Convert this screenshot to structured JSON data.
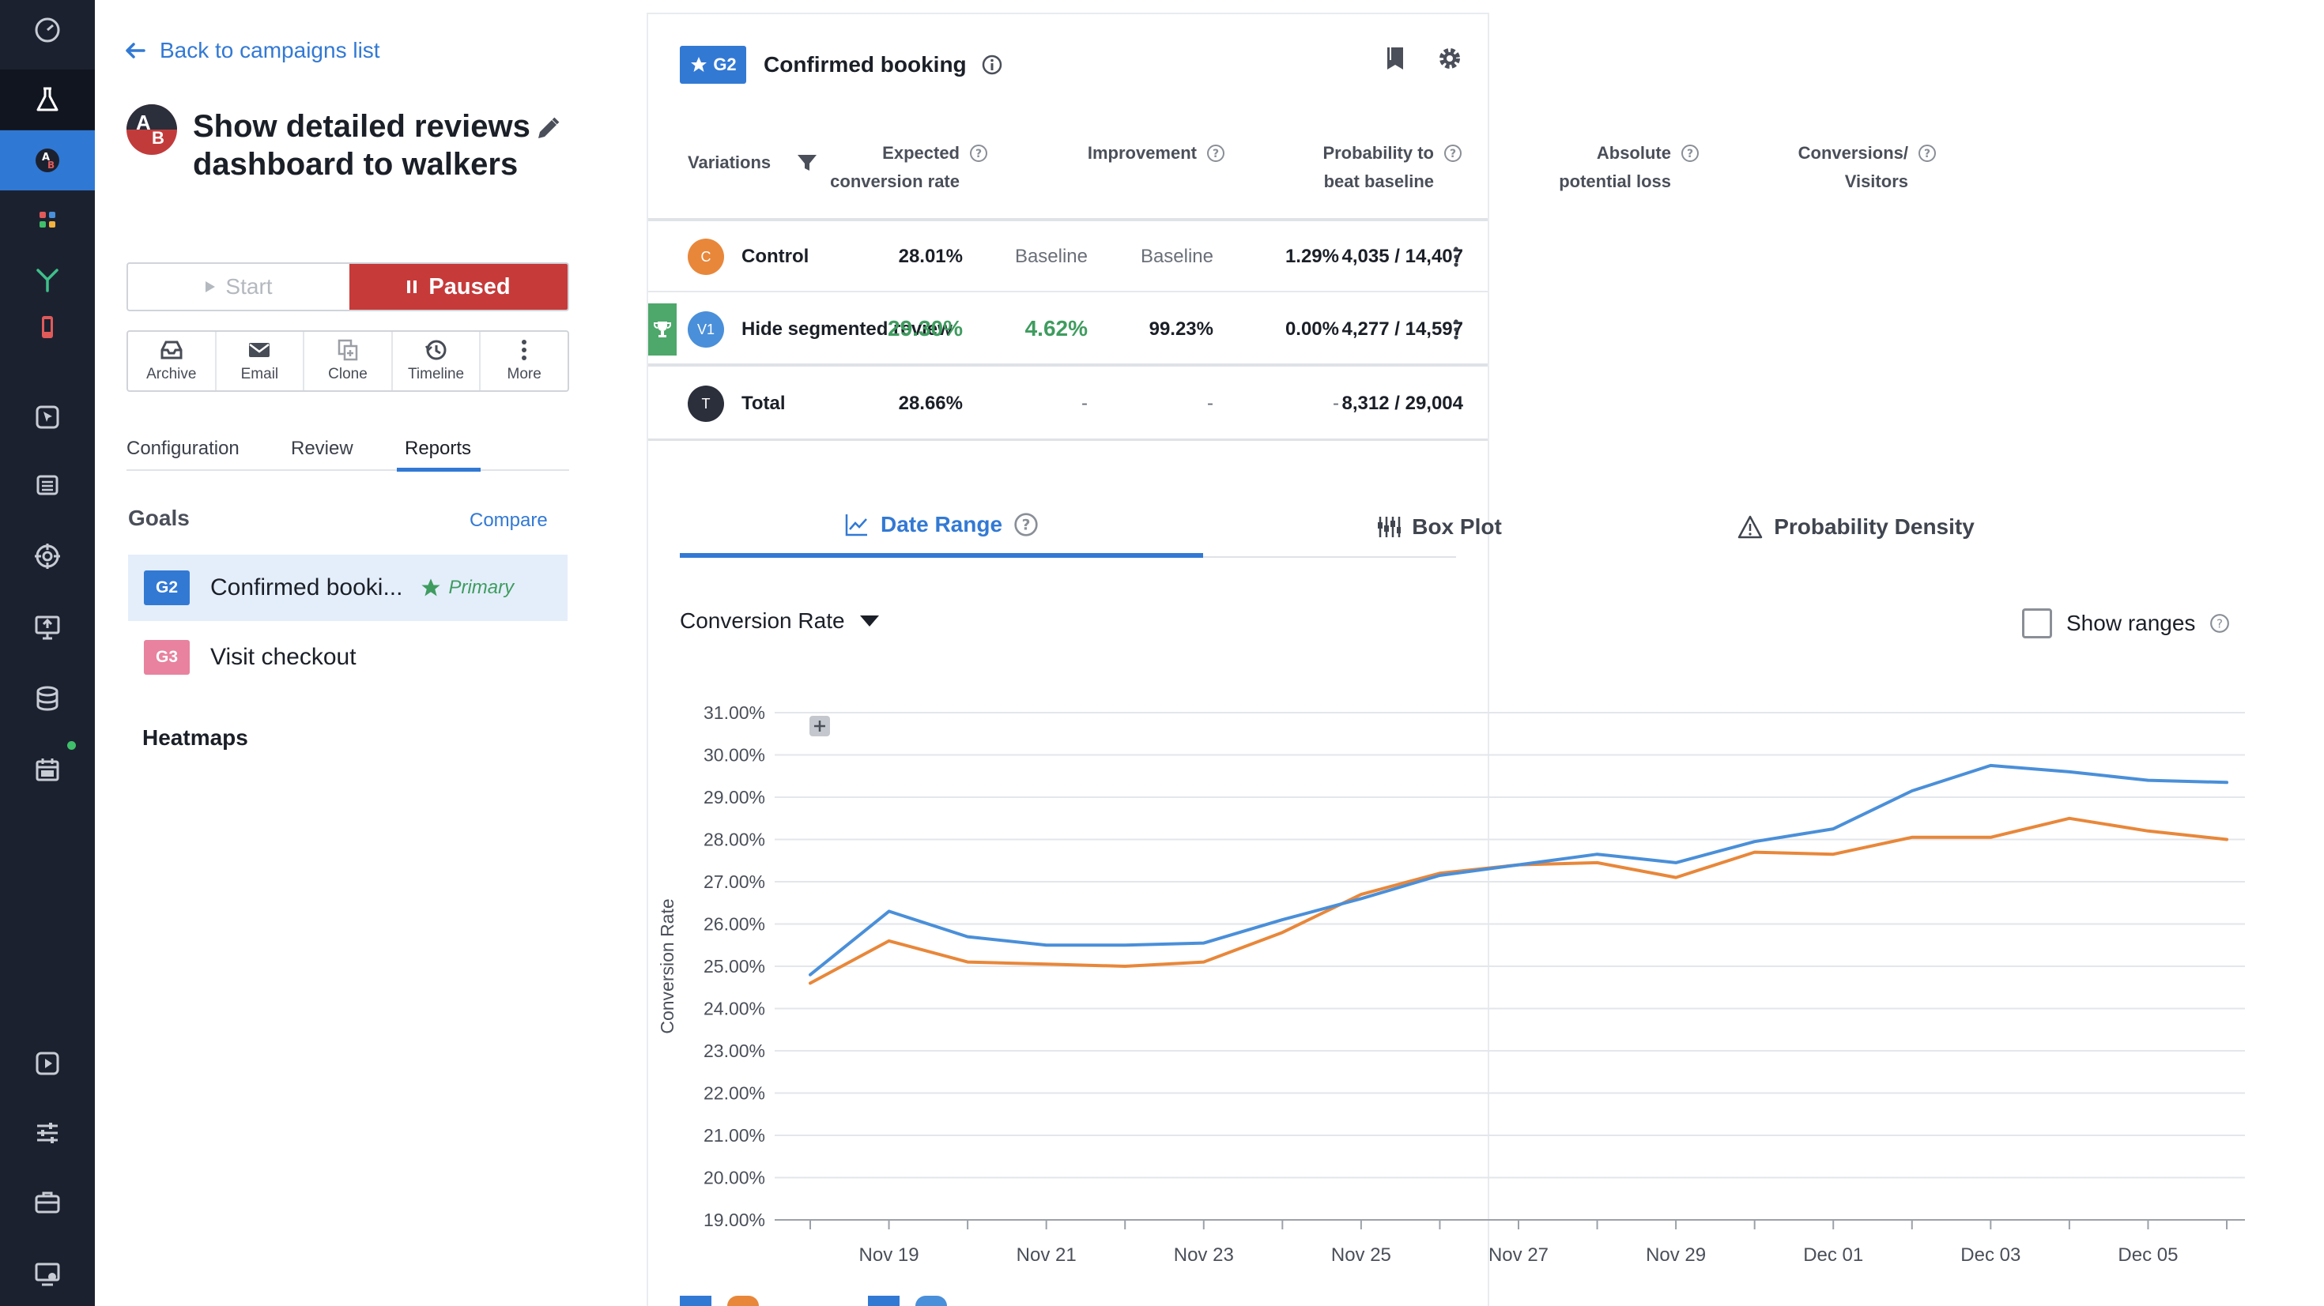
{
  "rail": {
    "items": [
      {
        "name": "dashboard-icon",
        "state": ""
      },
      {
        "name": "flask-icon",
        "state": "dark"
      },
      {
        "name": "ab-test-icon",
        "state": "active"
      },
      {
        "name": "apps-grid-icon",
        "state": ""
      },
      {
        "name": "funnel-split-icon",
        "state": ""
      },
      {
        "name": "mobile-icon",
        "state": ""
      },
      {
        "name": "cursor-icon",
        "state": ""
      },
      {
        "name": "list-icon",
        "state": ""
      },
      {
        "name": "target-icon",
        "state": ""
      },
      {
        "name": "monitor-icon",
        "state": ""
      },
      {
        "name": "database-icon",
        "state": ""
      },
      {
        "name": "calendar-icon",
        "state": ""
      },
      {
        "name": "play-screen-icon",
        "state": ""
      },
      {
        "name": "sliders-icon",
        "state": ""
      },
      {
        "name": "briefcase-icon",
        "state": ""
      },
      {
        "name": "screen-settings-icon",
        "state": ""
      }
    ]
  },
  "campaign": {
    "back_label": "Back to campaigns list",
    "avatar_a": "A",
    "avatar_b": "B",
    "title": "Show detailed reviews dashboard to walkers",
    "start_label": "Start",
    "paused_label": "Paused",
    "actions": [
      {
        "label": "Archive",
        "icon": "archive-icon"
      },
      {
        "label": "Email",
        "icon": "email-icon"
      },
      {
        "label": "Clone",
        "icon": "clone-icon"
      },
      {
        "label": "Timeline",
        "icon": "timeline-icon"
      },
      {
        "label": "More",
        "icon": "more-vertical-icon"
      }
    ],
    "tabs": [
      "Configuration",
      "Review",
      "Reports"
    ],
    "active_tab": "Reports",
    "goals_heading": "Goals",
    "compare_label": "Compare",
    "goals": [
      {
        "badge": "G2",
        "name": "Confirmed booki...",
        "primary": "Primary",
        "color": "#3279d4"
      },
      {
        "badge": "G3",
        "name": "Visit checkout",
        "primary": "",
        "color": "#e8829e"
      }
    ],
    "heatmaps_label": "Heatmaps"
  },
  "report": {
    "goal_badge": "G2",
    "goal_title": "Confirmed booking",
    "columns": {
      "variations": "Variations",
      "expected_1": "Expected",
      "expected_2": "conversion rate",
      "improvement": "Improvement",
      "probability_1": "Probability to",
      "probability_2": "beat baseline",
      "loss_1": "Absolute",
      "loss_2": "potential loss",
      "conv_1": "Conversions/",
      "conv_2": "Visitors"
    },
    "rows": [
      {
        "badge": "C",
        "name": "Control",
        "expected": "28.01%",
        "improvement": "Baseline",
        "probability": "Baseline",
        "loss": "1.29%",
        "conversions": "4,035 / 14,407",
        "color": "#e8873a"
      },
      {
        "badge": "V1",
        "name": "Hide segmented review",
        "expected": "29.30%",
        "improvement": "4.62%",
        "probability": "99.23%",
        "loss": "0.00%",
        "conversions": "4,277 / 14,597",
        "color": "#4a8fd9"
      },
      {
        "badge": "T",
        "name": "Total",
        "expected": "28.66%",
        "improvement": "-",
        "probability": "-",
        "loss": "-",
        "conversions": "8,312 / 29,004",
        "color": "#2b2f3b"
      }
    ],
    "chart_tabs": [
      "Date Range",
      "Box Plot",
      "Probability Density"
    ],
    "metric_label": "Conversion Rate",
    "show_ranges_label": "Show ranges"
  },
  "chart_data": {
    "type": "line",
    "title": "",
    "xlabel": "",
    "ylabel": "Conversion Rate",
    "ylim": [
      19,
      31
    ],
    "yticks": [
      "19.00%",
      "20.00%",
      "21.00%",
      "22.00%",
      "23.00%",
      "24.00%",
      "25.00%",
      "26.00%",
      "27.00%",
      "28.00%",
      "29.00%",
      "30.00%",
      "31.00%"
    ],
    "x": [
      "Nov 18",
      "Nov 19",
      "Nov 20",
      "Nov 21",
      "Nov 22",
      "Nov 23",
      "Nov 24",
      "Nov 25",
      "Nov 26",
      "Nov 27",
      "Nov 28",
      "Nov 29",
      "Nov 30",
      "Dec 01",
      "Dec 02",
      "Dec 03",
      "Dec 04",
      "Dec 05",
      "Dec 06"
    ],
    "xticks": [
      "Nov 19",
      "Nov 21",
      "Nov 23",
      "Nov 25",
      "Nov 27",
      "Nov 29",
      "Dec 01",
      "Dec 03",
      "Dec 05"
    ],
    "grid": true,
    "series": [
      {
        "name": "Hide segmented review",
        "color": "#4a8fd9",
        "values": [
          24.8,
          26.3,
          25.7,
          25.5,
          25.5,
          25.55,
          26.1,
          26.6,
          27.15,
          27.4,
          27.65,
          27.45,
          27.95,
          28.25,
          29.15,
          29.75,
          29.6,
          29.4,
          29.35
        ]
      },
      {
        "name": "Control",
        "color": "#e8873a",
        "values": [
          24.6,
          25.6,
          25.1,
          25.05,
          25.0,
          25.1,
          25.8,
          26.7,
          27.2,
          27.4,
          27.45,
          27.1,
          27.7,
          27.65,
          28.05,
          28.05,
          28.5,
          28.2,
          28.0
        ]
      }
    ]
  }
}
